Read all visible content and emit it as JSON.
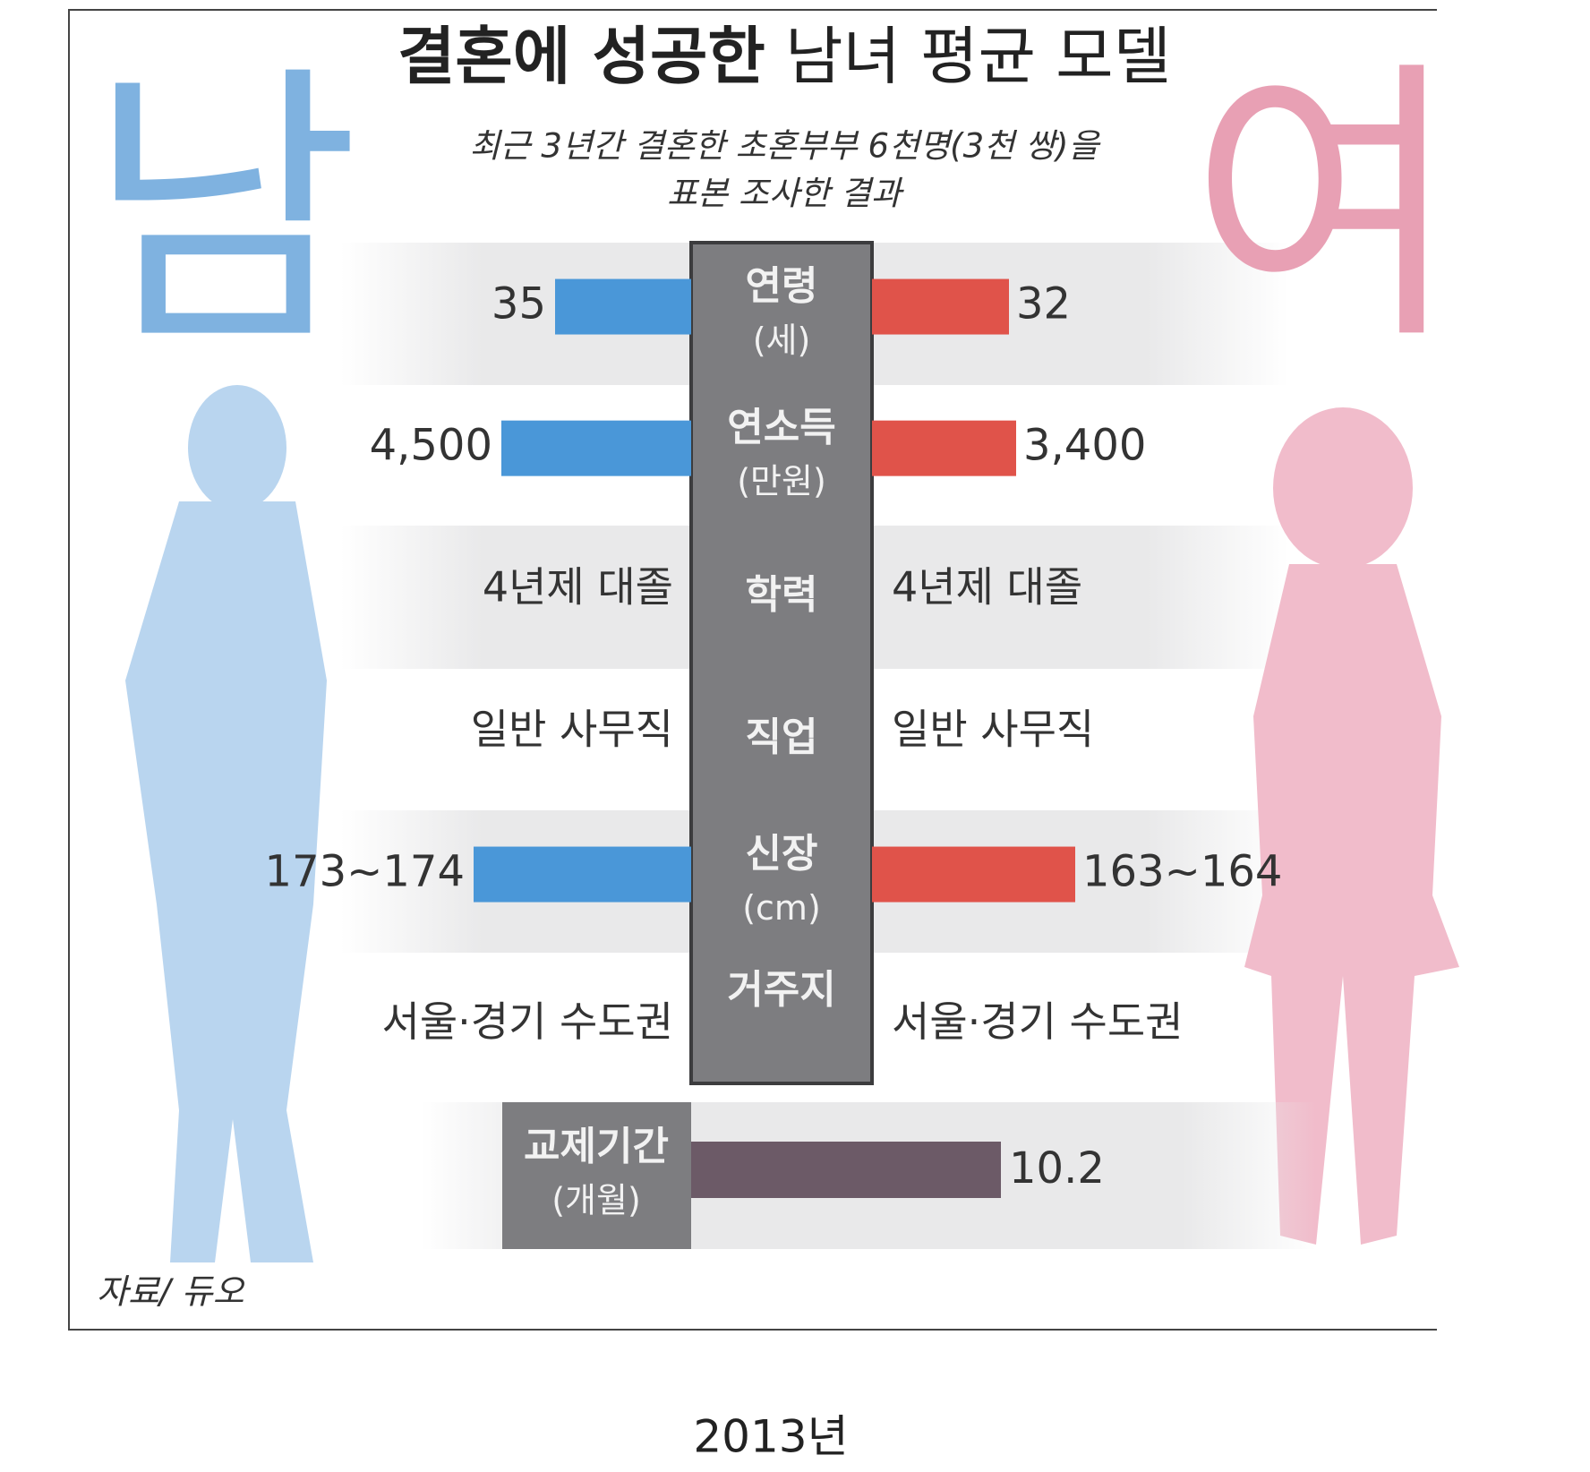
{
  "header": {
    "title_bold": "결혼에 성공한",
    "title_rest": "남녀 평균 모델",
    "subtitle": [
      "최근 3년간 결혼한 초혼부부 6천명(3천 쌍)을",
      "표본 조사한 결과"
    ]
  },
  "side_labels": {
    "male": "남",
    "female": "여"
  },
  "rows": [
    {
      "label": "연령",
      "unit": "(세)",
      "male": "35",
      "female": "32"
    },
    {
      "label": "연소득",
      "unit": "(만원)",
      "male": "4,500",
      "female": "3,400"
    },
    {
      "label": "학력",
      "male": "4년제 대졸",
      "female": "4년제 대졸"
    },
    {
      "label": "직업",
      "male": "일반 사무직",
      "female": "일반 사무직"
    },
    {
      "label": "신장",
      "unit": "(cm)",
      "male": "173~174",
      "female": "163~164"
    },
    {
      "label": "거주지",
      "male": "서울·경기 수도권",
      "female": "서울·경기 수도권"
    }
  ],
  "dating": {
    "label": "교제기간",
    "unit": "(개월)",
    "value": "10.2"
  },
  "source": "자료/ 듀오",
  "caption": "2013년"
}
